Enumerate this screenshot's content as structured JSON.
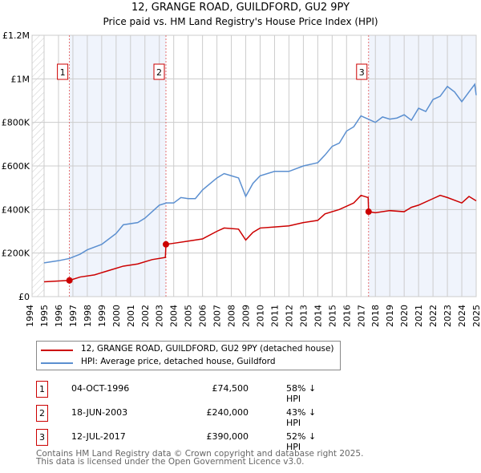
{
  "title": "12, GRANGE ROAD, GUILDFORD, GU2 9PY",
  "subtitle": "Price paid vs. HM Land Registry's House Price Index (HPI)",
  "chart_data": {
    "type": "line",
    "title": "12, GRANGE ROAD, GUILDFORD, GU2 9PY",
    "subtitle": "Price paid vs. HM Land Registry's House Price Index (HPI)",
    "xlim": [
      1994,
      2025
    ],
    "ylim": [
      0,
      1200000
    ],
    "y_ticks": [
      {
        "v": 0,
        "label": "£0"
      },
      {
        "v": 200000,
        "label": "£200K"
      },
      {
        "v": 400000,
        "label": "£400K"
      },
      {
        "v": 600000,
        "label": "£600K"
      },
      {
        "v": 800000,
        "label": "£800K"
      },
      {
        "v": 1000000,
        "label": "£1M"
      },
      {
        "v": 1200000,
        "label": "£1.2M"
      }
    ],
    "x_ticks": [
      "1994",
      "1995",
      "1996",
      "1997",
      "1998",
      "1999",
      "2000",
      "2001",
      "2002",
      "2003",
      "2004",
      "2005",
      "2006",
      "2007",
      "2008",
      "2009",
      "2010",
      "2011",
      "2012",
      "2013",
      "2014",
      "2015",
      "2016",
      "2017",
      "2018",
      "2019",
      "2020",
      "2021",
      "2022",
      "2023",
      "2024",
      "2025"
    ],
    "grid": true,
    "series": [
      {
        "name": "12, GRANGE ROAD, GUILDFORD, GU2 9PY (detached house)",
        "color": "#cc0000",
        "x": [
          1995,
          1996.76,
          1997.5,
          1998.5,
          1999.5,
          2000.5,
          2001.5,
          2002.5,
          2003.42,
          2003.46,
          2004,
          2005,
          2006,
          2007,
          2007.5,
          2008.5,
          2009,
          2009.5,
          2010,
          2011,
          2012,
          2013,
          2014,
          2014.5,
          2015.5,
          2016.5,
          2017,
          2017.5,
          2017.53,
          2018,
          2019,
          2020,
          2020.5,
          2021,
          2022,
          2022.5,
          2023,
          2024,
          2024.5,
          2025
        ],
        "y": [
          68000,
          74500,
          90000,
          100000,
          120000,
          140000,
          150000,
          170000,
          180000,
          240000,
          245000,
          255000,
          265000,
          300000,
          315000,
          310000,
          260000,
          295000,
          315000,
          320000,
          325000,
          340000,
          350000,
          380000,
          400000,
          430000,
          465000,
          455000,
          390000,
          385000,
          395000,
          390000,
          410000,
          420000,
          450000,
          465000,
          455000,
          430000,
          460000,
          440000
        ]
      },
      {
        "name": "HPI: Average price, detached house, Guildford",
        "color": "#5b8fd0",
        "x": [
          1995,
          1996,
          1996.75,
          1997.5,
          1998,
          1999,
          2000,
          2000.5,
          2001.5,
          2002,
          2003,
          2003.5,
          2004,
          2004.5,
          2005,
          2005.5,
          2006,
          2007,
          2007.5,
          2008,
          2008.5,
          2009,
          2009.5,
          2010,
          2011,
          2012,
          2013,
          2014,
          2014.5,
          2015,
          2015.5,
          2016,
          2016.5,
          2017,
          2017.5,
          2018,
          2018.5,
          2019,
          2019.5,
          2020,
          2020.5,
          2021,
          2021.5,
          2022,
          2022.5,
          2023,
          2023.5,
          2024,
          2024.5,
          2024.9,
          2025
        ],
        "y": [
          155000,
          165000,
          175000,
          195000,
          215000,
          240000,
          290000,
          330000,
          340000,
          360000,
          420000,
          430000,
          430000,
          455000,
          450000,
          450000,
          490000,
          545000,
          565000,
          555000,
          545000,
          460000,
          520000,
          555000,
          575000,
          575000,
          600000,
          615000,
          650000,
          690000,
          705000,
          760000,
          780000,
          830000,
          815000,
          800000,
          825000,
          815000,
          820000,
          835000,
          810000,
          865000,
          850000,
          905000,
          920000,
          965000,
          940000,
          895000,
          940000,
          975000,
          925000
        ]
      }
    ],
    "sales": [
      {
        "n": "1",
        "x": 1996.76,
        "price": 74500,
        "date": "04-OCT-1996",
        "price_label": "£74,500",
        "hpi": "58% ↓ HPI"
      },
      {
        "n": "2",
        "x": 2003.46,
        "price": 240000,
        "date": "18-JUN-2003",
        "price_label": "£240,000",
        "hpi": "43% ↓ HPI"
      },
      {
        "n": "3",
        "x": 2017.53,
        "price": 390000,
        "date": "12-JUL-2017",
        "price_label": "£390,000",
        "hpi": "52% ↓ HPI"
      }
    ],
    "legend_placement": "below"
  },
  "footer": {
    "line1": "Contains HM Land Registry data © Crown copyright and database right 2025.",
    "line2": "This data is licensed under the Open Government Licence v3.0."
  }
}
